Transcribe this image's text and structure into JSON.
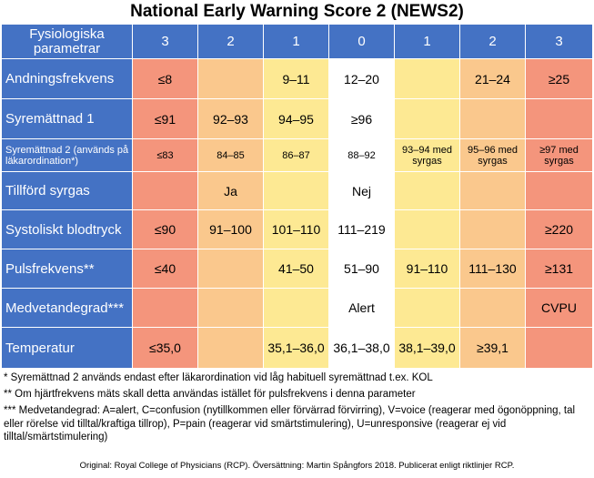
{
  "title": "National Early Warning Score 2 (NEWS2)",
  "header": {
    "param_label": "Fysiologiska parametrar",
    "scores": [
      "3",
      "2",
      "1",
      "0",
      "1",
      "2",
      "3"
    ]
  },
  "rows": [
    {
      "param": "Andningsfrekvens",
      "cells": [
        "≤8",
        "",
        "9–11",
        "12–20",
        "",
        "21–24",
        "≥25"
      ]
    },
    {
      "param": "Syremättnad 1",
      "cells": [
        "≤91",
        "92–93",
        "94–95",
        "≥96",
        "",
        "",
        ""
      ]
    },
    {
      "param": "Syremättnad 2 (används på läkarordination*)",
      "cells": [
        "≤83",
        "84–85",
        "86–87",
        "88–92",
        "93–94 med syrgas",
        "95–96 med syrgas",
        "≥97 med syrgas"
      ]
    },
    {
      "param": "Tillförd syrgas",
      "cells": [
        "",
        "Ja",
        "",
        "Nej",
        "",
        "",
        ""
      ]
    },
    {
      "param": "Systoliskt blodtryck",
      "cells": [
        "≤90",
        "91–100",
        "101–110",
        "111–219",
        "",
        "",
        "≥220"
      ]
    },
    {
      "param": "Pulsfrekvens**",
      "cells": [
        "≤40",
        "",
        "41–50",
        "51–90",
        "91–110",
        "111–130",
        "≥131"
      ]
    },
    {
      "param": "Medvetandegrad***",
      "cells": [
        "",
        "",
        "",
        "Alert",
        "",
        "",
        "CVPU"
      ]
    },
    {
      "param": "Temperatur",
      "cells": [
        "≤35,0",
        "",
        "35,1–36,0",
        "36,1–38,0",
        "38,1–39,0",
        "≥39,1",
        ""
      ]
    }
  ],
  "notes": [
    "* Syremättnad 2 används endast efter läkarordination vid låg habituell syremättnad t.ex. KOL",
    "** Om hjärtfrekvens mäts skall detta användas istället för pulsfrekvens i denna parameter",
    "*** Medvetandegrad: A=alert, C=confusion (nytillkommen eller förvärrad förvirring), V=voice (reagerar med ögonöppning, tal eller rörelse vid tilltal/kraftiga tillrop), P=pain (reagerar vid smärtstimulering), U=unresponsive (reagerar ej vid tilltal/smärtstimulering)"
  ],
  "source": "Original: Royal College of Physicians (RCP). Översättning: Martin Spångfors 2018. Publicerat enligt riktlinjer RCP.",
  "colors": {
    "header": "#4472c4",
    "score_3": "#f4957c",
    "score_2": "#fac88d",
    "score_1": "#fde993",
    "score_0": "#ffffff"
  }
}
